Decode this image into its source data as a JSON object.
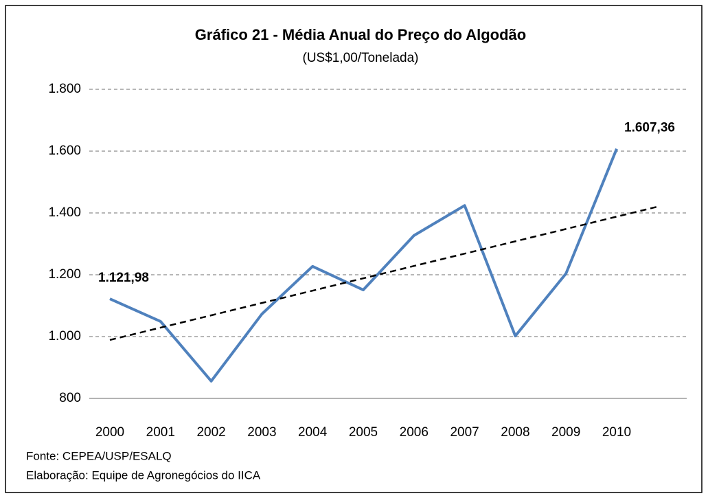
{
  "chart_data": {
    "type": "line",
    "title": "Gráfico 21 - Média  Anual do Preço do Algodão",
    "subtitle": "(US$1,00/Tonelada)",
    "categories": [
      "2000",
      "2001",
      "2002",
      "2003",
      "2004",
      "2005",
      "2006",
      "2007",
      "2008",
      "2009",
      "2010"
    ],
    "values": [
      1121.98,
      1049,
      856,
      1073,
      1227,
      1151,
      1327,
      1424,
      1002,
      1204,
      1607.36
    ],
    "value_labels": [
      "1.121,98",
      null,
      null,
      null,
      null,
      null,
      null,
      null,
      null,
      null,
      "1.607,36"
    ],
    "color": "#4f81bd",
    "trendline": {
      "values": [
        989,
        1388
      ],
      "color": "#000000"
    },
    "ylim": [
      800,
      1800
    ],
    "yticks": [
      800,
      {
        "value": 1000,
        "label": "1.000"
      },
      {
        "value": 1200,
        "label": "1.200"
      },
      {
        "value": 1400,
        "label": "1.400"
      },
      {
        "value": 1600,
        "label": "1.600"
      },
      {
        "value": 1800,
        "label": "1.800"
      }
    ],
    "grid": true,
    "notes": [
      "Fonte: CEPEA/USP/ESALQ",
      "Elaboração: Equipe de Agronegócios do IICA"
    ]
  }
}
